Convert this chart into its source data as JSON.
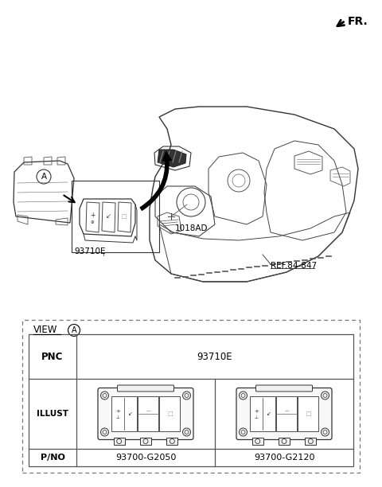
{
  "bg_color": "#ffffff",
  "lc": "#1a1a1a",
  "lc_thick": "#000000",
  "fr_label": "FR.",
  "ref_label": "REF.84-847",
  "part_93710E": "93710E",
  "part_1018AD": "1018AD",
  "view_label": "VIEW",
  "view_circle": "A",
  "pnc_label": "PNC",
  "pnc_value": "93710E",
  "illust_label": "ILLUST",
  "pno_label": "P/NO",
  "pno_1": "93700-G2050",
  "pno_2": "93700-G2120",
  "dash_color": "#aaaaaa",
  "table_color": "#555555"
}
